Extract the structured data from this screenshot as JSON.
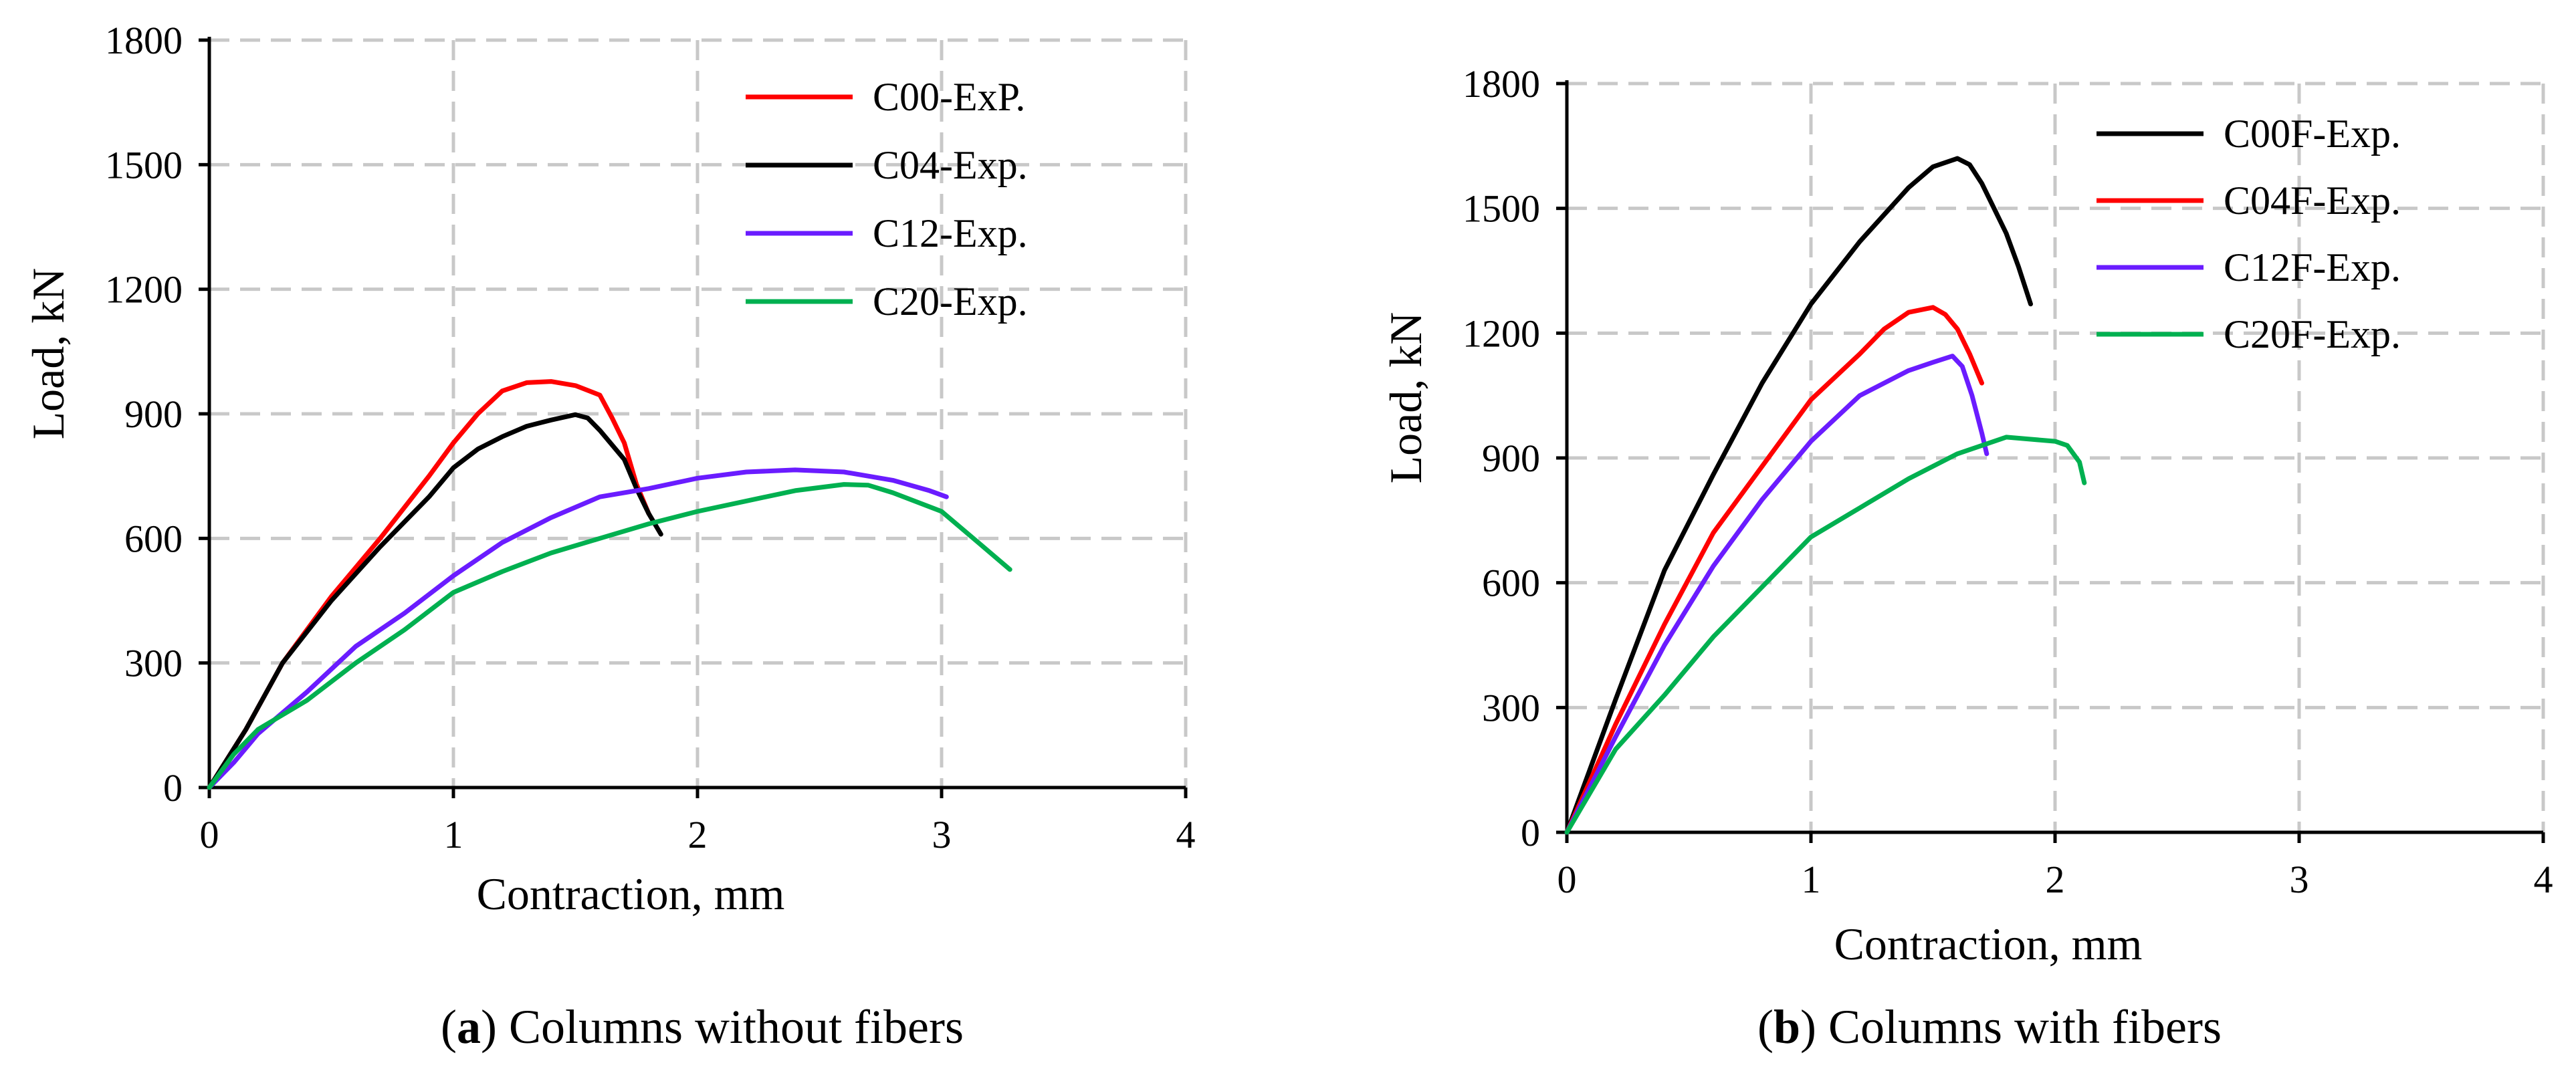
{
  "chart_data": [
    {
      "id": "a",
      "type": "line",
      "caption_letter": "a",
      "caption_open": "(",
      "caption_close": ")",
      "caption_rest": " Columns without fibers",
      "xlabel": "Contraction, mm",
      "ylabel": "Load, kN",
      "xlim": [
        0,
        4
      ],
      "ylim": [
        0,
        1800
      ],
      "xticks": [
        0,
        1,
        2,
        3,
        4
      ],
      "yticks": [
        0,
        300,
        600,
        900,
        1200,
        1500,
        1800
      ],
      "grid": true,
      "legend_position": "top-right",
      "series": [
        {
          "name": "C00-ExP.",
          "color": "#ff0000",
          "x": [
            0,
            0.15,
            0.3,
            0.5,
            0.7,
            0.9,
            1.0,
            1.1,
            1.2,
            1.3,
            1.4,
            1.5,
            1.6,
            1.65,
            1.7,
            1.75,
            1.8
          ],
          "y": [
            0,
            140,
            300,
            460,
            600,
            750,
            830,
            900,
            955,
            975,
            978,
            968,
            945,
            890,
            830,
            730,
            660
          ]
        },
        {
          "name": "C04-Exp.",
          "color": "#000000",
          "x": [
            0,
            0.15,
            0.3,
            0.5,
            0.7,
            0.9,
            1.0,
            1.1,
            1.2,
            1.3,
            1.4,
            1.5,
            1.55,
            1.6,
            1.7,
            1.75,
            1.8,
            1.85
          ],
          "y": [
            0,
            140,
            300,
            450,
            580,
            700,
            770,
            815,
            845,
            870,
            885,
            898,
            890,
            860,
            790,
            720,
            660,
            610
          ]
        },
        {
          "name": "C12-Exp.",
          "color": "#6a1cff",
          "x": [
            0,
            0.1,
            0.2,
            0.4,
            0.6,
            0.8,
            1.0,
            1.2,
            1.4,
            1.6,
            1.8,
            2.0,
            2.2,
            2.4,
            2.6,
            2.8,
            2.95,
            3.02
          ],
          "y": [
            0,
            60,
            130,
            230,
            340,
            420,
            510,
            590,
            650,
            700,
            720,
            745,
            760,
            765,
            760,
            740,
            715,
            700
          ]
        },
        {
          "name": "C20-Exp.",
          "color": "#00b050",
          "x": [
            0,
            0.1,
            0.2,
            0.4,
            0.6,
            0.8,
            1.0,
            1.2,
            1.4,
            1.6,
            1.8,
            2.0,
            2.2,
            2.4,
            2.6,
            2.7,
            2.8,
            3.0,
            3.15,
            3.28
          ],
          "y": [
            0,
            80,
            140,
            210,
            300,
            380,
            470,
            520,
            565,
            600,
            635,
            665,
            690,
            715,
            730,
            728,
            710,
            665,
            590,
            525
          ]
        }
      ]
    },
    {
      "id": "b",
      "type": "line",
      "caption_letter": "b",
      "caption_open": "(",
      "caption_close": ")",
      "caption_rest": " Columns with fibers",
      "xlabel": "Contraction, mm",
      "ylabel": "Load, kN",
      "xlim": [
        0,
        4
      ],
      "ylim": [
        0,
        1800
      ],
      "xticks": [
        0,
        1,
        2,
        3,
        4
      ],
      "yticks": [
        0,
        300,
        600,
        900,
        1200,
        1500,
        1800
      ],
      "grid": true,
      "legend_position": "top-right",
      "series": [
        {
          "name": "C00F-Exp.",
          "color": "#000000",
          "x": [
            0,
            0.2,
            0.4,
            0.6,
            0.8,
            1.0,
            1.2,
            1.4,
            1.5,
            1.6,
            1.65,
            1.7,
            1.75,
            1.8,
            1.85,
            1.9
          ],
          "y": [
            0,
            320,
            630,
            860,
            1080,
            1270,
            1420,
            1550,
            1600,
            1620,
            1605,
            1560,
            1500,
            1440,
            1360,
            1270
          ]
        },
        {
          "name": "C04F-Exp.",
          "color": "#ff0000",
          "x": [
            0,
            0.2,
            0.4,
            0.6,
            0.8,
            1.0,
            1.2,
            1.3,
            1.4,
            1.5,
            1.55,
            1.6,
            1.65,
            1.7
          ],
          "y": [
            0,
            260,
            500,
            720,
            880,
            1040,
            1150,
            1210,
            1250,
            1262,
            1245,
            1210,
            1150,
            1080
          ]
        },
        {
          "name": "C12F-Exp.",
          "color": "#6a1cff",
          "x": [
            0,
            0.2,
            0.4,
            0.6,
            0.8,
            1.0,
            1.2,
            1.4,
            1.5,
            1.58,
            1.62,
            1.66,
            1.7,
            1.72
          ],
          "y": [
            0,
            230,
            450,
            640,
            800,
            940,
            1050,
            1110,
            1130,
            1145,
            1120,
            1050,
            960,
            910
          ]
        },
        {
          "name": "C20F-Exp.",
          "color": "#00b050",
          "x": [
            0,
            0.2,
            0.4,
            0.6,
            0.8,
            1.0,
            1.2,
            1.4,
            1.6,
            1.8,
            1.9,
            2.0,
            2.05,
            2.1,
            2.12
          ],
          "y": [
            0,
            200,
            330,
            470,
            590,
            710,
            780,
            850,
            910,
            950,
            945,
            940,
            930,
            890,
            840
          ]
        }
      ]
    }
  ]
}
